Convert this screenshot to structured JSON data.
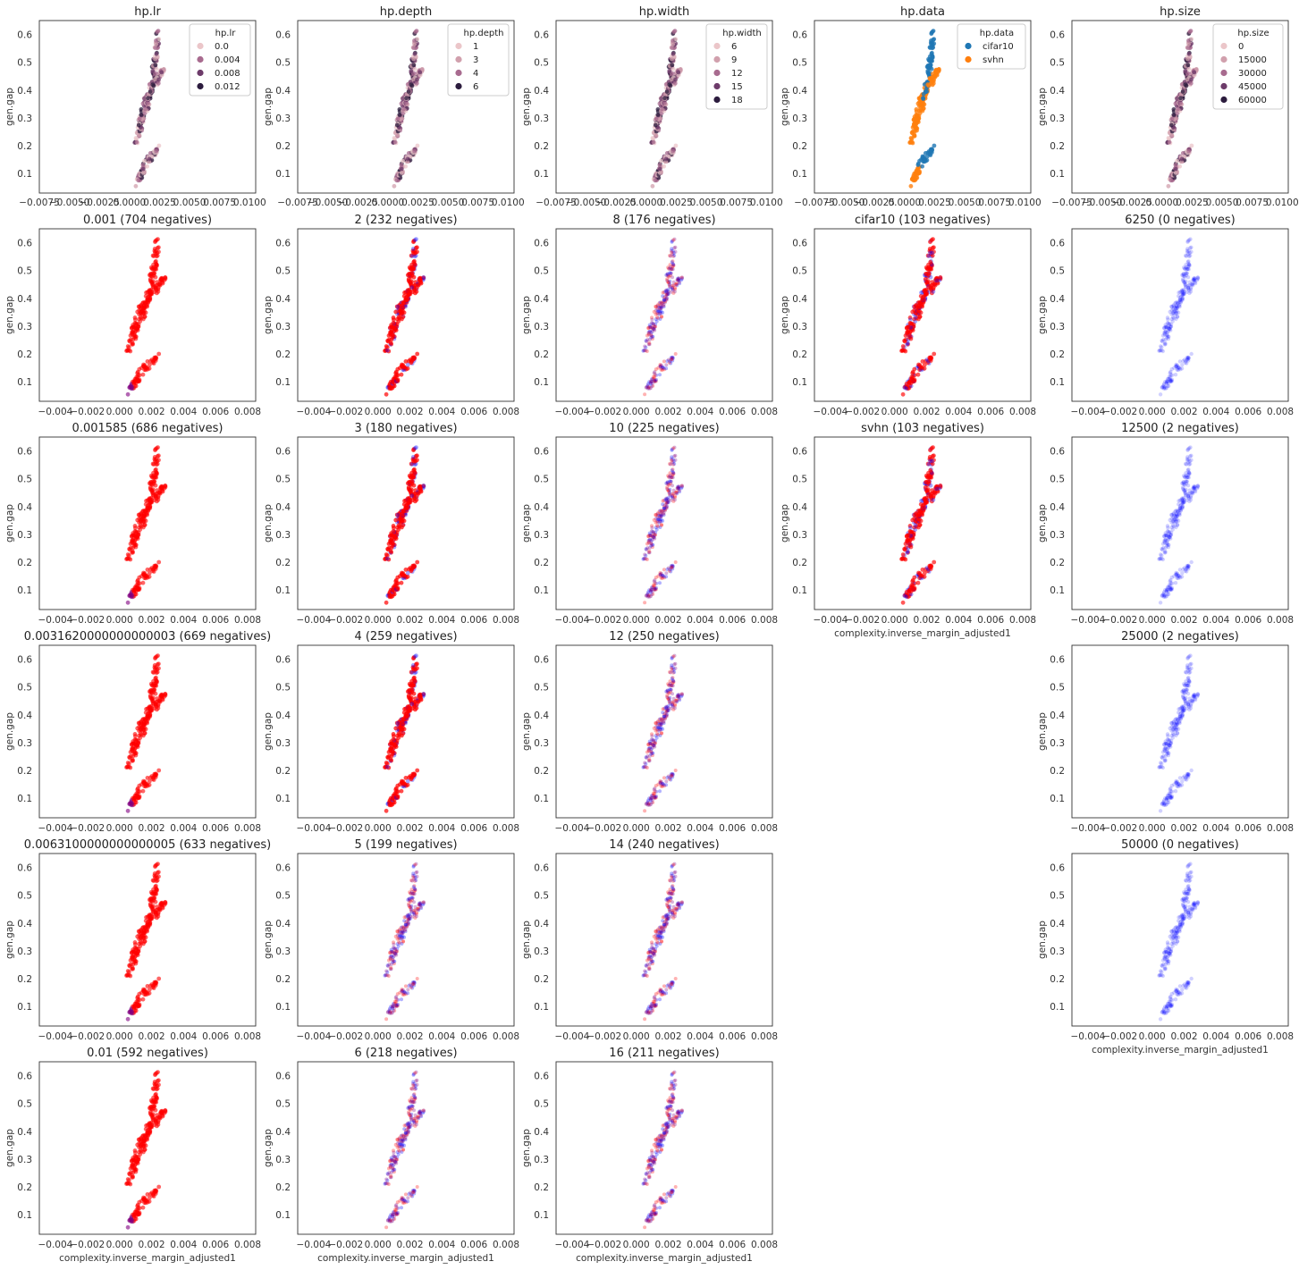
{
  "common": {
    "ylabel": "gen.gap",
    "xlabel": "complexity.inverse_margin_adjusted1",
    "yticks": [
      "0.1",
      "0.2",
      "0.3",
      "0.4",
      "0.5",
      "0.6"
    ],
    "xticks_top": [
      "−0.0075",
      "−0.0050",
      "−0.0025",
      "0.0000",
      "0.0025",
      "0.0050",
      "0.0075",
      "0.0100"
    ],
    "xticks_bottom": [
      "−0.004",
      "−0.002",
      "0.000",
      "0.002",
      "0.004",
      "0.006",
      "0.008"
    ]
  },
  "colors": {
    "red": "#ff0000",
    "blue": "#0000ff",
    "purple": "#800080",
    "cifar10": "#1f77b4",
    "svhn": "#ff7f0e",
    "hue": [
      "#ebc6c9",
      "#d1a0ad",
      "#a86b8f",
      "#6d3b6a",
      "#2c1c3e"
    ]
  },
  "chart_data": [
    {
      "type": "scatter",
      "title": "hp.lr",
      "xlabel": "",
      "ylabel": "gen.gap",
      "xlim": [
        -0.0075,
        0.0105
      ],
      "ylim": [
        0.03,
        0.65
      ],
      "legend": {
        "title": "hp.lr",
        "placement": "top-right",
        "entries": [
          {
            "label": "0.0",
            "color": "#ebc6c9"
          },
          {
            "label": "0.004",
            "color": "#a86b8f"
          },
          {
            "label": "0.008",
            "color": "#6d3b6a"
          },
          {
            "label": "0.012",
            "color": "#2c1c3e"
          }
        ]
      }
    },
    {
      "type": "scatter",
      "title": "hp.depth",
      "xlabel": "",
      "ylabel": "gen.gap",
      "xlim": [
        -0.0075,
        0.0105
      ],
      "ylim": [
        0.03,
        0.65
      ],
      "legend": {
        "title": "hp.depth",
        "placement": "top-right",
        "entries": [
          {
            "label": "1",
            "color": "#ebc6c9"
          },
          {
            "label": "3",
            "color": "#d1a0ad"
          },
          {
            "label": "4",
            "color": "#a86b8f"
          },
          {
            "label": "6",
            "color": "#2c1c3e"
          }
        ]
      }
    },
    {
      "type": "scatter",
      "title": "hp.width",
      "xlabel": "",
      "ylabel": "gen.gap",
      "xlim": [
        -0.0075,
        0.0105
      ],
      "ylim": [
        0.03,
        0.65
      ],
      "legend": {
        "title": "hp.width",
        "placement": "top-right",
        "entries": [
          {
            "label": "6",
            "color": "#ebc6c9"
          },
          {
            "label": "9",
            "color": "#d1a0ad"
          },
          {
            "label": "12",
            "color": "#a86b8f"
          },
          {
            "label": "15",
            "color": "#6d3b6a"
          },
          {
            "label": "18",
            "color": "#2c1c3e"
          }
        ]
      }
    },
    {
      "type": "scatter",
      "title": "hp.data",
      "xlabel": "",
      "ylabel": "gen.gap",
      "xlim": [
        -0.0075,
        0.0105
      ],
      "ylim": [
        0.03,
        0.65
      ],
      "legend": {
        "title": "hp.data",
        "placement": "top-right",
        "entries": [
          {
            "label": "cifar10",
            "color": "#1f77b4"
          },
          {
            "label": "svhn",
            "color": "#ff7f0e"
          }
        ]
      }
    },
    {
      "type": "scatter",
      "title": "hp.size",
      "xlabel": "",
      "ylabel": "gen.gap",
      "xlim": [
        -0.0075,
        0.0105
      ],
      "ylim": [
        0.03,
        0.65
      ],
      "legend": {
        "title": "hp.size",
        "placement": "top-right",
        "entries": [
          {
            "label": "0",
            "color": "#ebc6c9"
          },
          {
            "label": "15000",
            "color": "#d1a0ad"
          },
          {
            "label": "30000",
            "color": "#a86b8f"
          },
          {
            "label": "45000",
            "color": "#6d3b6a"
          },
          {
            "label": "60000",
            "color": "#2c1c3e"
          }
        ]
      }
    },
    {
      "type": "scatter",
      "title": "0.001 (704 negatives)",
      "xlabel": "",
      "ylabel": "gen.gap",
      "xlim": [
        -0.005,
        0.0085
      ],
      "ylim": [
        0.03,
        0.65
      ],
      "style": "red"
    },
    {
      "type": "scatter",
      "title": "2 (232 negatives)",
      "xlabel": "",
      "ylabel": "gen.gap",
      "xlim": [
        -0.005,
        0.0085
      ],
      "ylim": [
        0.03,
        0.65
      ],
      "style": "red-bars"
    },
    {
      "type": "scatter",
      "title": "8 (176 negatives)",
      "xlabel": "",
      "ylabel": "gen.gap",
      "xlim": [
        -0.005,
        0.0085
      ],
      "ylim": [
        0.03,
        0.65
      ],
      "style": "mixed"
    },
    {
      "type": "scatter",
      "title": "cifar10 (103 negatives)",
      "xlabel": "",
      "ylabel": "gen.gap",
      "xlim": [
        -0.005,
        0.0085
      ],
      "ylim": [
        0.03,
        0.65
      ],
      "style": "data-red"
    },
    {
      "type": "scatter",
      "title": "6250 (0 negatives)",
      "xlabel": "",
      "ylabel": "gen.gap",
      "xlim": [
        -0.005,
        0.0085
      ],
      "ylim": [
        0.03,
        0.65
      ],
      "style": "blue"
    },
    {
      "type": "scatter",
      "title": "0.001585 (686 negatives)",
      "xlabel": "",
      "ylabel": "gen.gap",
      "xlim": [
        -0.005,
        0.0085
      ],
      "ylim": [
        0.03,
        0.65
      ],
      "style": "red"
    },
    {
      "type": "scatter",
      "title": "3 (180 negatives)",
      "xlabel": "",
      "ylabel": "gen.gap",
      "xlim": [
        -0.005,
        0.0085
      ],
      "ylim": [
        0.03,
        0.65
      ],
      "style": "red-bars"
    },
    {
      "type": "scatter",
      "title": "10 (225 negatives)",
      "xlabel": "",
      "ylabel": "gen.gap",
      "xlim": [
        -0.005,
        0.0085
      ],
      "ylim": [
        0.03,
        0.65
      ],
      "style": "mixed"
    },
    {
      "type": "scatter",
      "title": "svhn (103 negatives)",
      "xlabel": "complexity.inverse_margin_adjusted1",
      "ylabel": "gen.gap",
      "xlim": [
        -0.005,
        0.0085
      ],
      "ylim": [
        0.03,
        0.65
      ],
      "style": "data-red"
    },
    {
      "type": "scatter",
      "title": "12500 (2 negatives)",
      "xlabel": "",
      "ylabel": "gen.gap",
      "xlim": [
        -0.005,
        0.0085
      ],
      "ylim": [
        0.03,
        0.65
      ],
      "style": "blue"
    },
    {
      "type": "scatter",
      "title": "0.0031620000000000003 (669 negatives)",
      "xlabel": "",
      "ylabel": "gen.gap",
      "xlim": [
        -0.005,
        0.0085
      ],
      "ylim": [
        0.03,
        0.65
      ],
      "style": "red"
    },
    {
      "type": "scatter",
      "title": "4 (259 negatives)",
      "xlabel": "",
      "ylabel": "gen.gap",
      "xlim": [
        -0.005,
        0.0085
      ],
      "ylim": [
        0.03,
        0.65
      ],
      "style": "red-bars"
    },
    {
      "type": "scatter",
      "title": "12 (250 negatives)",
      "xlabel": "",
      "ylabel": "gen.gap",
      "xlim": [
        -0.005,
        0.0085
      ],
      "ylim": [
        0.03,
        0.65
      ],
      "style": "mixed"
    },
    {
      "type": "scatter",
      "title": "25000 (2 negatives)",
      "xlabel": "",
      "ylabel": "gen.gap",
      "xlim": [
        -0.005,
        0.0085
      ],
      "ylim": [
        0.03,
        0.65
      ],
      "style": "blue"
    },
    {
      "type": "scatter",
      "title": "0.0063100000000000005 (633 negatives)",
      "xlabel": "",
      "ylabel": "gen.gap",
      "xlim": [
        -0.005,
        0.0085
      ],
      "ylim": [
        0.03,
        0.65
      ],
      "style": "red"
    },
    {
      "type": "scatter",
      "title": "5 (199 negatives)",
      "xlabel": "",
      "ylabel": "gen.gap",
      "xlim": [
        -0.005,
        0.0085
      ],
      "ylim": [
        0.03,
        0.65
      ],
      "style": "mixed"
    },
    {
      "type": "scatter",
      "title": "14 (240 negatives)",
      "xlabel": "",
      "ylabel": "gen.gap",
      "xlim": [
        -0.005,
        0.0085
      ],
      "ylim": [
        0.03,
        0.65
      ],
      "style": "mixed"
    },
    {
      "type": "scatter",
      "title": "50000 (0 negatives)",
      "xlabel": "complexity.inverse_margin_adjusted1",
      "ylabel": "gen.gap",
      "xlim": [
        -0.005,
        0.0085
      ],
      "ylim": [
        0.03,
        0.65
      ],
      "style": "blue"
    },
    {
      "type": "scatter",
      "title": "0.01 (592 negatives)",
      "xlabel": "complexity.inverse_margin_adjusted1",
      "ylabel": "gen.gap",
      "xlim": [
        -0.005,
        0.0085
      ],
      "ylim": [
        0.03,
        0.65
      ],
      "style": "red"
    },
    {
      "type": "scatter",
      "title": "6 (218 negatives)",
      "xlabel": "complexity.inverse_margin_adjusted1",
      "ylabel": "gen.gap",
      "xlim": [
        -0.005,
        0.0085
      ],
      "ylim": [
        0.03,
        0.65
      ],
      "style": "mixed"
    },
    {
      "type": "scatter",
      "title": "16 (211 negatives)",
      "xlabel": "complexity.inverse_margin_adjusted1",
      "ylabel": "gen.gap",
      "xlim": [
        -0.005,
        0.0085
      ],
      "ylim": [
        0.03,
        0.65
      ],
      "style": "mixed"
    }
  ]
}
